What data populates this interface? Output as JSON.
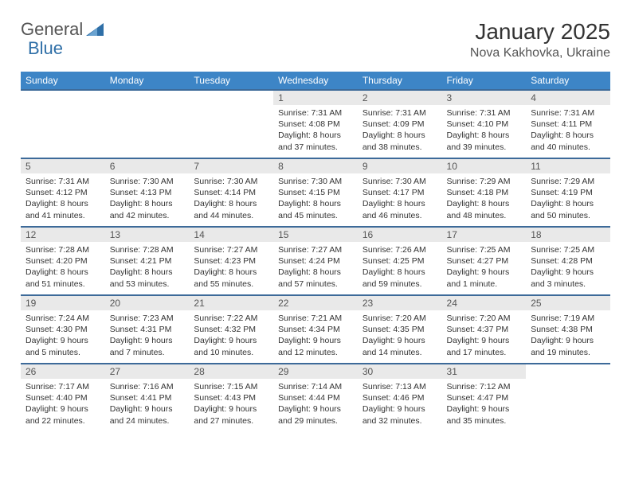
{
  "brand": {
    "left": "General",
    "right": "Blue"
  },
  "title": "January 2025",
  "location": "Nova Kakhovka, Ukraine",
  "colors": {
    "header_bg": "#3d85c6",
    "header_text": "#ffffff",
    "row_border": "#3d6a99",
    "daynum_bg": "#e9e9e9",
    "text": "#333333",
    "brand_blue": "#2f6fa7",
    "background": "#ffffff"
  },
  "typography": {
    "title_fontsize": 28,
    "location_fontsize": 16,
    "header_fontsize": 12,
    "daynum_fontsize": 12,
    "details_fontsize": 10.5
  },
  "dayHeaders": [
    "Sunday",
    "Monday",
    "Tuesday",
    "Wednesday",
    "Thursday",
    "Friday",
    "Saturday"
  ],
  "weeks": [
    [
      null,
      null,
      null,
      {
        "n": "1",
        "sr": "7:31 AM",
        "ss": "4:08 PM",
        "dl": "8 hours and 37 minutes."
      },
      {
        "n": "2",
        "sr": "7:31 AM",
        "ss": "4:09 PM",
        "dl": "8 hours and 38 minutes."
      },
      {
        "n": "3",
        "sr": "7:31 AM",
        "ss": "4:10 PM",
        "dl": "8 hours and 39 minutes."
      },
      {
        "n": "4",
        "sr": "7:31 AM",
        "ss": "4:11 PM",
        "dl": "8 hours and 40 minutes."
      }
    ],
    [
      {
        "n": "5",
        "sr": "7:31 AM",
        "ss": "4:12 PM",
        "dl": "8 hours and 41 minutes."
      },
      {
        "n": "6",
        "sr": "7:30 AM",
        "ss": "4:13 PM",
        "dl": "8 hours and 42 minutes."
      },
      {
        "n": "7",
        "sr": "7:30 AM",
        "ss": "4:14 PM",
        "dl": "8 hours and 44 minutes."
      },
      {
        "n": "8",
        "sr": "7:30 AM",
        "ss": "4:15 PM",
        "dl": "8 hours and 45 minutes."
      },
      {
        "n": "9",
        "sr": "7:30 AM",
        "ss": "4:17 PM",
        "dl": "8 hours and 46 minutes."
      },
      {
        "n": "10",
        "sr": "7:29 AM",
        "ss": "4:18 PM",
        "dl": "8 hours and 48 minutes."
      },
      {
        "n": "11",
        "sr": "7:29 AM",
        "ss": "4:19 PM",
        "dl": "8 hours and 50 minutes."
      }
    ],
    [
      {
        "n": "12",
        "sr": "7:28 AM",
        "ss": "4:20 PM",
        "dl": "8 hours and 51 minutes."
      },
      {
        "n": "13",
        "sr": "7:28 AM",
        "ss": "4:21 PM",
        "dl": "8 hours and 53 minutes."
      },
      {
        "n": "14",
        "sr": "7:27 AM",
        "ss": "4:23 PM",
        "dl": "8 hours and 55 minutes."
      },
      {
        "n": "15",
        "sr": "7:27 AM",
        "ss": "4:24 PM",
        "dl": "8 hours and 57 minutes."
      },
      {
        "n": "16",
        "sr": "7:26 AM",
        "ss": "4:25 PM",
        "dl": "8 hours and 59 minutes."
      },
      {
        "n": "17",
        "sr": "7:25 AM",
        "ss": "4:27 PM",
        "dl": "9 hours and 1 minute."
      },
      {
        "n": "18",
        "sr": "7:25 AM",
        "ss": "4:28 PM",
        "dl": "9 hours and 3 minutes."
      }
    ],
    [
      {
        "n": "19",
        "sr": "7:24 AM",
        "ss": "4:30 PM",
        "dl": "9 hours and 5 minutes."
      },
      {
        "n": "20",
        "sr": "7:23 AM",
        "ss": "4:31 PM",
        "dl": "9 hours and 7 minutes."
      },
      {
        "n": "21",
        "sr": "7:22 AM",
        "ss": "4:32 PM",
        "dl": "9 hours and 10 minutes."
      },
      {
        "n": "22",
        "sr": "7:21 AM",
        "ss": "4:34 PM",
        "dl": "9 hours and 12 minutes."
      },
      {
        "n": "23",
        "sr": "7:20 AM",
        "ss": "4:35 PM",
        "dl": "9 hours and 14 minutes."
      },
      {
        "n": "24",
        "sr": "7:20 AM",
        "ss": "4:37 PM",
        "dl": "9 hours and 17 minutes."
      },
      {
        "n": "25",
        "sr": "7:19 AM",
        "ss": "4:38 PM",
        "dl": "9 hours and 19 minutes."
      }
    ],
    [
      {
        "n": "26",
        "sr": "7:17 AM",
        "ss": "4:40 PM",
        "dl": "9 hours and 22 minutes."
      },
      {
        "n": "27",
        "sr": "7:16 AM",
        "ss": "4:41 PM",
        "dl": "9 hours and 24 minutes."
      },
      {
        "n": "28",
        "sr": "7:15 AM",
        "ss": "4:43 PM",
        "dl": "9 hours and 27 minutes."
      },
      {
        "n": "29",
        "sr": "7:14 AM",
        "ss": "4:44 PM",
        "dl": "9 hours and 29 minutes."
      },
      {
        "n": "30",
        "sr": "7:13 AM",
        "ss": "4:46 PM",
        "dl": "9 hours and 32 minutes."
      },
      {
        "n": "31",
        "sr": "7:12 AM",
        "ss": "4:47 PM",
        "dl": "9 hours and 35 minutes."
      },
      null
    ]
  ],
  "labels": {
    "sunrise": "Sunrise: ",
    "sunset": "Sunset: ",
    "daylight": "Daylight: "
  }
}
